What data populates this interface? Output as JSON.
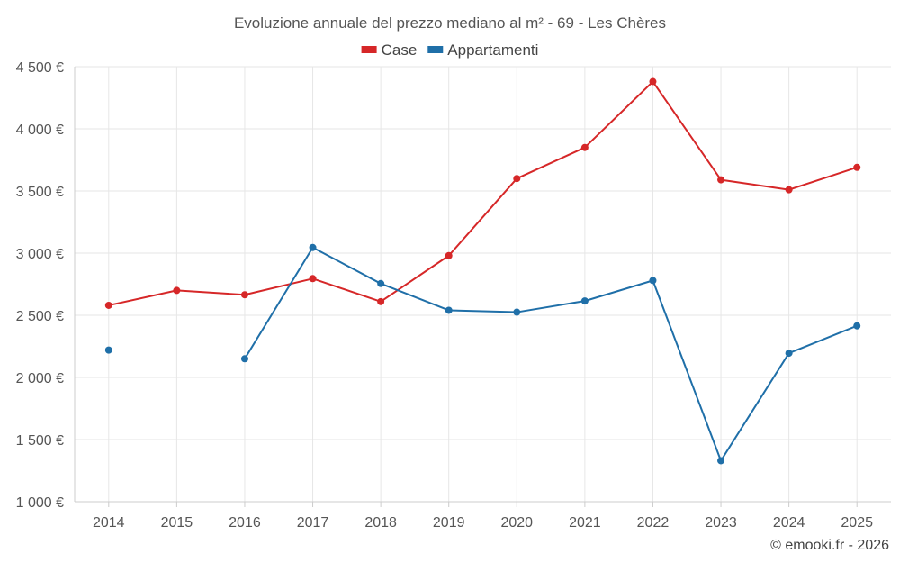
{
  "chart_data": {
    "type": "line",
    "title": "Evoluzione annuale del prezzo mediano al m² - 69 - Les Chères",
    "categories": [
      "2014",
      "2015",
      "2016",
      "2017",
      "2018",
      "2019",
      "2020",
      "2021",
      "2022",
      "2023",
      "2024",
      "2025"
    ],
    "ylim": [
      1000,
      4500
    ],
    "yticks": [
      1000,
      1500,
      2000,
      2500,
      3000,
      3500,
      4000,
      4500
    ],
    "ytick_labels": [
      "1 000 €",
      "1 500 €",
      "2 000 €",
      "2 500 €",
      "3 000 €",
      "3 500 €",
      "4 000 €",
      "4 500 €"
    ],
    "series": [
      {
        "name": "Case",
        "color": "#d62728",
        "values": [
          2580,
          2700,
          2665,
          2795,
          2610,
          2980,
          3600,
          3850,
          4380,
          3590,
          3510,
          3690
        ]
      },
      {
        "name": "Appartamenti",
        "color": "#1f6fa8",
        "values": [
          2220,
          null,
          2150,
          3045,
          2755,
          2540,
          2525,
          2615,
          2780,
          1330,
          2195,
          2415
        ]
      }
    ],
    "credit": "© emooki.fr - 2026",
    "legend_position": "top-center",
    "grid": true
  }
}
